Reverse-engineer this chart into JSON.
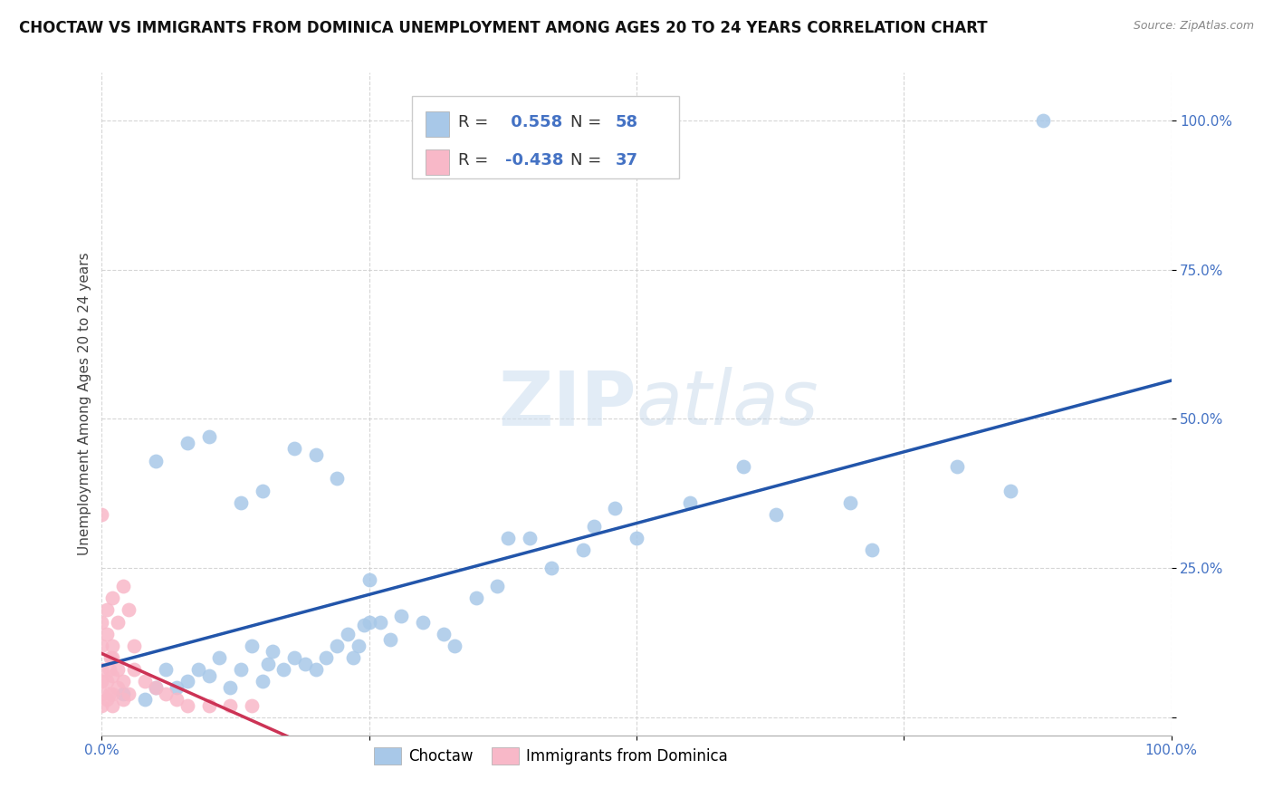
{
  "title": "CHOCTAW VS IMMIGRANTS FROM DOMINICA UNEMPLOYMENT AMONG AGES 20 TO 24 YEARS CORRELATION CHART",
  "source": "Source: ZipAtlas.com",
  "ylabel": "Unemployment Among Ages 20 to 24 years",
  "watermark_zip": "ZIP",
  "watermark_atlas": "atlas",
  "choctaw_R": 0.558,
  "choctaw_N": 58,
  "dominica_R": -0.438,
  "dominica_N": 37,
  "choctaw_color": "#a8c8e8",
  "choctaw_line_color": "#2255aa",
  "dominica_color": "#f8b8c8",
  "dominica_line_color": "#cc3355",
  "tick_color": "#4472c4",
  "xlim": [
    0.0,
    1.0
  ],
  "ylim": [
    -0.05,
    1.05
  ],
  "xticks": [
    0.0,
    0.25,
    0.5,
    0.75,
    1.0
  ],
  "yticks": [
    0.0,
    0.25,
    0.5,
    0.75,
    1.0
  ],
  "xticklabels": [
    "0.0%",
    "",
    "",
    "",
    "100.0%"
  ],
  "yticklabels": [
    "",
    "25.0%",
    "50.0%",
    "75.0%",
    "100.0%"
  ],
  "choctaw_x": [
    0.02,
    0.04,
    0.05,
    0.06,
    0.07,
    0.08,
    0.09,
    0.1,
    0.11,
    0.12,
    0.13,
    0.14,
    0.15,
    0.155,
    0.16,
    0.17,
    0.18,
    0.19,
    0.2,
    0.21,
    0.22,
    0.23,
    0.235,
    0.24,
    0.245,
    0.25,
    0.26,
    0.27,
    0.28,
    0.3,
    0.32,
    0.33,
    0.35,
    0.37,
    0.38,
    0.4,
    0.42,
    0.45,
    0.46,
    0.48,
    0.5,
    0.55,
    0.6,
    0.63,
    0.7,
    0.72,
    0.8,
    0.85,
    0.88,
    0.05,
    0.08,
    0.1,
    0.13,
    0.15,
    0.18,
    0.2,
    0.22,
    0.25
  ],
  "choctaw_y": [
    0.04,
    0.03,
    0.05,
    0.08,
    0.05,
    0.06,
    0.08,
    0.07,
    0.1,
    0.05,
    0.08,
    0.12,
    0.06,
    0.09,
    0.11,
    0.08,
    0.1,
    0.09,
    0.08,
    0.1,
    0.12,
    0.14,
    0.1,
    0.12,
    0.155,
    0.16,
    0.16,
    0.13,
    0.17,
    0.16,
    0.14,
    0.12,
    0.2,
    0.22,
    0.3,
    0.3,
    0.25,
    0.28,
    0.32,
    0.35,
    0.3,
    0.36,
    0.42,
    0.34,
    0.36,
    0.28,
    0.42,
    0.38,
    1.0,
    0.43,
    0.46,
    0.47,
    0.36,
    0.38,
    0.45,
    0.44,
    0.4,
    0.23
  ],
  "dominica_x": [
    0.0,
    0.0,
    0.0,
    0.0,
    0.005,
    0.005,
    0.007,
    0.007,
    0.008,
    0.01,
    0.01,
    0.01,
    0.01,
    0.015,
    0.015,
    0.02,
    0.02,
    0.025,
    0.0,
    0.0,
    0.005,
    0.005,
    0.01,
    0.01,
    0.015,
    0.02,
    0.025,
    0.03,
    0.03,
    0.04,
    0.05,
    0.06,
    0.07,
    0.08,
    0.1,
    0.12,
    0.14
  ],
  "dominica_y": [
    0.02,
    0.04,
    0.06,
    0.08,
    0.03,
    0.06,
    0.04,
    0.08,
    0.1,
    0.02,
    0.04,
    0.07,
    0.1,
    0.05,
    0.08,
    0.03,
    0.06,
    0.04,
    0.12,
    0.16,
    0.14,
    0.18,
    0.12,
    0.2,
    0.16,
    0.22,
    0.18,
    0.08,
    0.12,
    0.06,
    0.05,
    0.04,
    0.03,
    0.02,
    0.02,
    0.02,
    0.02
  ],
  "dominica_lone_x": [
    0.0
  ],
  "dominica_lone_y": [
    0.34
  ],
  "title_fontsize": 12,
  "axis_label_fontsize": 11,
  "tick_fontsize": 11,
  "background_color": "#ffffff",
  "grid_color": "#cccccc",
  "grid_style": "--",
  "grid_alpha": 0.8
}
